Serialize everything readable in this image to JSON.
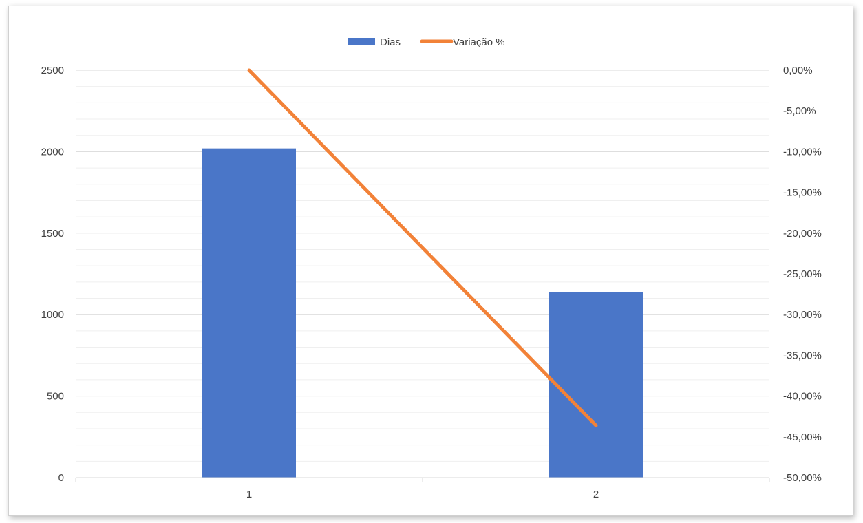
{
  "chart_data": {
    "type": "bar",
    "categories": [
      "1",
      "2"
    ],
    "series": [
      {
        "name": "Dias",
        "type": "bar",
        "axis": "left",
        "values": [
          2020,
          1140
        ],
        "color": "#4a76c8"
      },
      {
        "name": "Variação %",
        "type": "line",
        "axis": "right",
        "values": [
          0.0,
          -43.6
        ],
        "color": "#f28238"
      }
    ],
    "y_left": {
      "ylim": [
        0,
        2500
      ],
      "ticks": [
        "0",
        "500",
        "1000",
        "1500",
        "2000",
        "2500"
      ]
    },
    "y_right": {
      "ylim": [
        -50,
        0
      ],
      "ticks": [
        "0,00%",
        "-5,00%",
        "-10,00%",
        "-15,00%",
        "-20,00%",
        "-25,00%",
        "-30,00%",
        "-35,00%",
        "-40,00%",
        "-45,00%",
        "-50,00%"
      ]
    },
    "title": "",
    "xlabel": "",
    "ylabel": "",
    "grid": true,
    "legend": "top-center"
  }
}
